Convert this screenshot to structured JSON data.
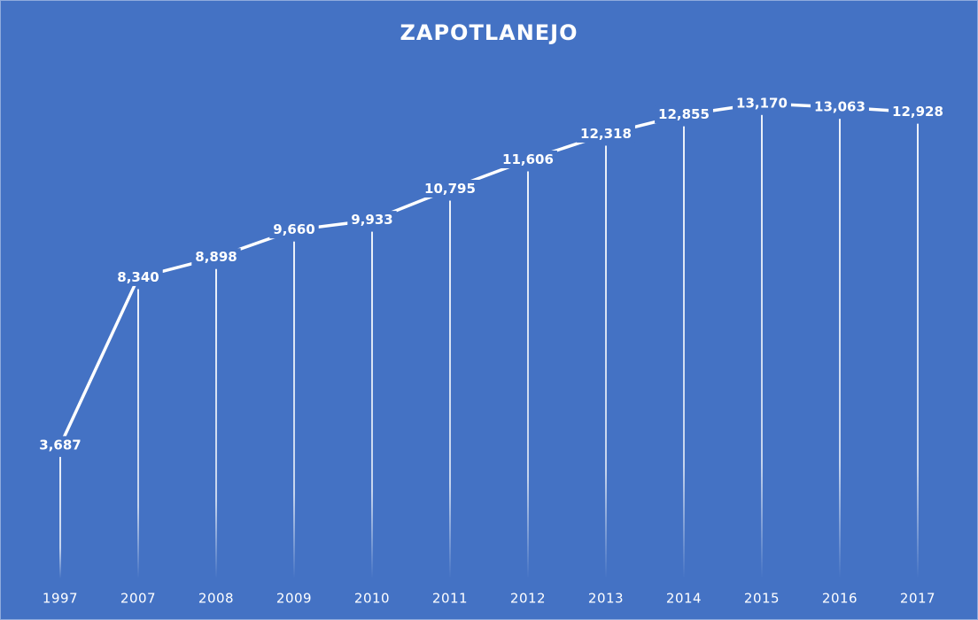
{
  "chart_data": {
    "type": "line",
    "title": "ZAPOTLANEJO",
    "categories": [
      "1997",
      "2007",
      "2008",
      "2009",
      "2010",
      "2011",
      "2012",
      "2013",
      "2014",
      "2015",
      "2016",
      "2017"
    ],
    "series": [
      {
        "name": "Zapotlanejo",
        "color": "#ffffff",
        "values": [
          3687,
          8340,
          8898,
          9660,
          9933,
          10795,
          11606,
          12318,
          12855,
          13170,
          13063,
          12928
        ],
        "value_labels": [
          "3,687",
          "8,340",
          "8,898",
          "9,660",
          "9,933",
          "10,795",
          "11,606",
          "12,318",
          "12,855",
          "13,170",
          "13,063",
          "12,928"
        ]
      }
    ],
    "ylim": [
      0,
      14000
    ],
    "drop_lines": true
  }
}
